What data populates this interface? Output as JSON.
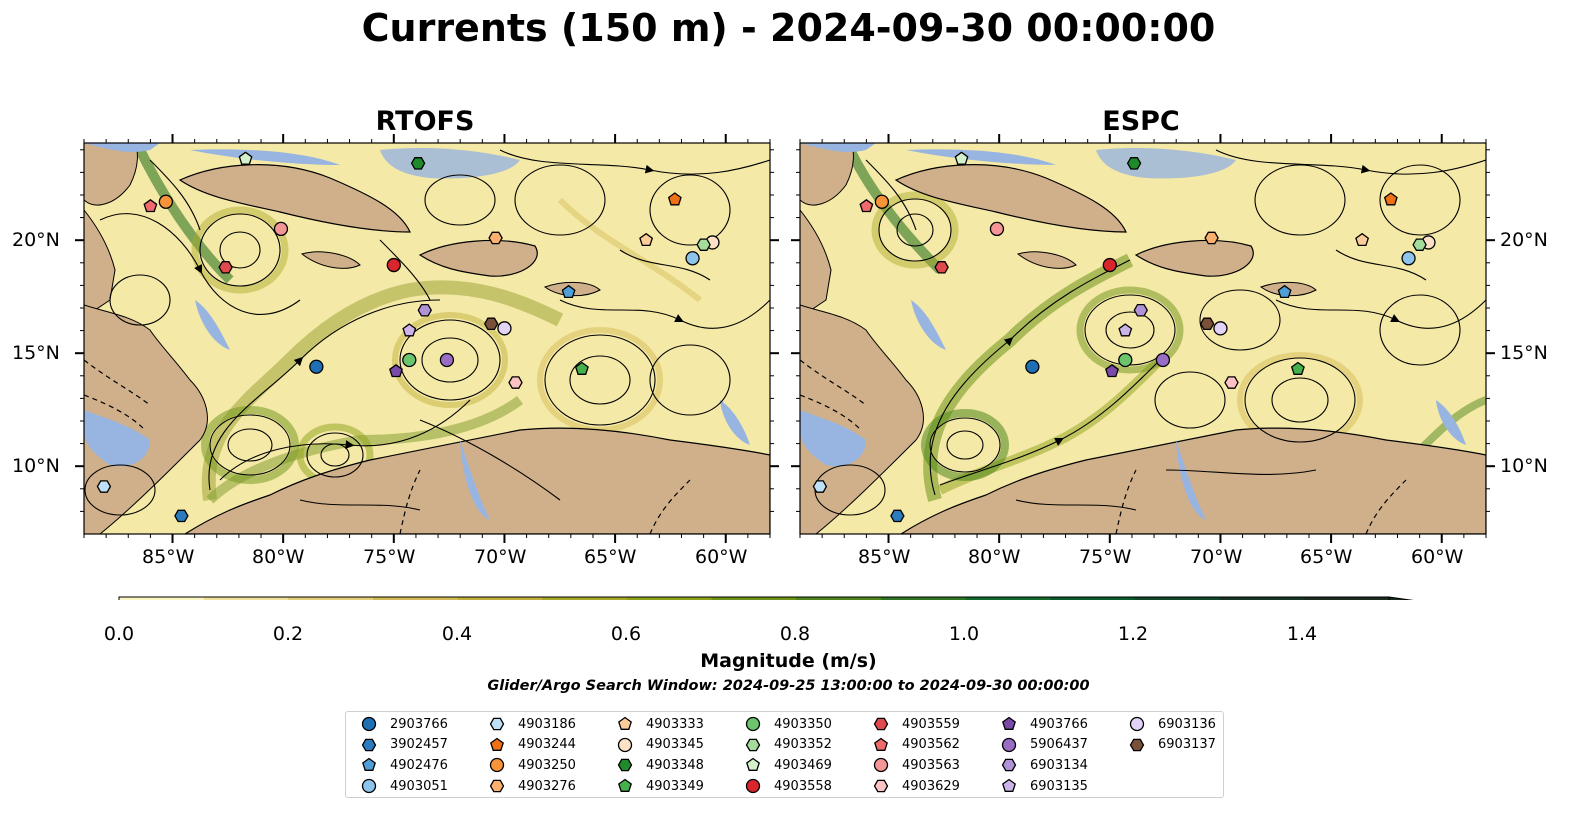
{
  "title": "Currents (150 m) - 2024-09-30 00:00:00",
  "panels": [
    {
      "id": "rtofs",
      "title": "RTOFS"
    },
    {
      "id": "espc",
      "title": "ESPC"
    }
  ],
  "axes": {
    "lon_ticks": [
      "85°W",
      "80°W",
      "75°W",
      "70°W",
      "65°W",
      "60°W"
    ],
    "lat_ticks": [
      "20°N",
      "15°N",
      "10°N"
    ],
    "lon_range": [
      -89,
      -58
    ],
    "lat_range": [
      7,
      24.3
    ]
  },
  "colorbar": {
    "label": "Magnitude (m/s)",
    "ticks": [
      "0.0",
      "0.2",
      "0.4",
      "0.6",
      "0.8",
      "1.0",
      "1.2",
      "1.4"
    ],
    "range": [
      0,
      1.5
    ],
    "extend": "max",
    "colors": [
      "#fcf6c2",
      "#f0e29a",
      "#e2cf78",
      "#d3bb55",
      "#c2b23c",
      "#a8a928",
      "#8ea21a",
      "#6e9418",
      "#4e861c",
      "#2f7624",
      "#126a2c",
      "#0c5a2c",
      "#11462a",
      "#173524",
      "#1a2b1d"
    ]
  },
  "search_window": "Glider/Argo Search Window: 2024-09-25 13:00:00 to 2024-09-30 00:00:00",
  "legend": {
    "entries": [
      {
        "label": "2903766",
        "marker": "circle",
        "color": "#1f6fb4"
      },
      {
        "label": "3902457",
        "marker": "hexagon",
        "color": "#2b7bbf"
      },
      {
        "label": "4902476",
        "marker": "pentagon",
        "color": "#4f9fd6"
      },
      {
        "label": "4903051",
        "marker": "circle",
        "color": "#8ec3eb"
      },
      {
        "label": "4903186",
        "marker": "hexagon",
        "color": "#bfe0f6"
      },
      {
        "label": "4903244",
        "marker": "pentagon",
        "color": "#f07016"
      },
      {
        "label": "4903250",
        "marker": "circle",
        "color": "#f7943a"
      },
      {
        "label": "4903276",
        "marker": "hexagon",
        "color": "#fbb06e"
      },
      {
        "label": "4903333",
        "marker": "pentagon",
        "color": "#fdcd99"
      },
      {
        "label": "4903345",
        "marker": "circle",
        "color": "#fde2c7"
      },
      {
        "label": "4903348",
        "marker": "hexagon",
        "color": "#1e8a2a"
      },
      {
        "label": "4903349",
        "marker": "pentagon",
        "color": "#45b14a"
      },
      {
        "label": "4903350",
        "marker": "circle",
        "color": "#6cc46c"
      },
      {
        "label": "4903352",
        "marker": "hexagon",
        "color": "#a4dd9a"
      },
      {
        "label": "4903469",
        "marker": "pentagon",
        "color": "#d3f2cb"
      },
      {
        "label": "4903558",
        "marker": "circle",
        "color": "#d8262c"
      },
      {
        "label": "4903559",
        "marker": "hexagon",
        "color": "#e14a4d"
      },
      {
        "label": "4903562",
        "marker": "pentagon",
        "color": "#ee6a6c"
      },
      {
        "label": "4903563",
        "marker": "circle",
        "color": "#f49696"
      },
      {
        "label": "4903629",
        "marker": "hexagon",
        "color": "#fbc3c3"
      },
      {
        "label": "4903766",
        "marker": "pentagon",
        "color": "#7b4aa8"
      },
      {
        "label": "5906437",
        "marker": "circle",
        "color": "#9a6dc4"
      },
      {
        "label": "6903134",
        "marker": "hexagon",
        "color": "#b292d6"
      },
      {
        "label": "6903135",
        "marker": "pentagon",
        "color": "#cdb4e8"
      },
      {
        "label": "6903136",
        "marker": "circle",
        "color": "#e3d3f6"
      },
      {
        "label": "6903137",
        "marker": "hexagon",
        "color": "#7a5138"
      }
    ]
  },
  "floats": [
    {
      "id": "2903766",
      "lon": -78.5,
      "lat": 14.4
    },
    {
      "id": "3902457",
      "lon": -84.6,
      "lat": 7.8
    },
    {
      "id": "4902476",
      "lon": -67.1,
      "lat": 17.7
    },
    {
      "id": "4903051",
      "lon": -61.5,
      "lat": 19.2
    },
    {
      "id": "4903186",
      "lon": -88.1,
      "lat": 9.1
    },
    {
      "id": "4903244",
      "lon": -62.3,
      "lat": 21.8
    },
    {
      "id": "4903250",
      "lon": -85.3,
      "lat": 21.7
    },
    {
      "id": "4903276",
      "lon": -70.4,
      "lat": 20.1
    },
    {
      "id": "4903333",
      "lon": -63.6,
      "lat": 20.0
    },
    {
      "id": "4903345",
      "lon": -60.6,
      "lat": 19.9
    },
    {
      "id": "4903348",
      "lon": -73.9,
      "lat": 23.4
    },
    {
      "id": "4903349",
      "lon": -66.5,
      "lat": 14.3
    },
    {
      "id": "4903350",
      "lon": -74.3,
      "lat": 14.7
    },
    {
      "id": "4903352",
      "lon": -61.0,
      "lat": 19.8
    },
    {
      "id": "4903469",
      "lon": -81.7,
      "lat": 23.6
    },
    {
      "id": "4903558",
      "lon": -75.0,
      "lat": 18.9
    },
    {
      "id": "4903559",
      "lon": -82.6,
      "lat": 18.8
    },
    {
      "id": "4903562",
      "lon": -86.0,
      "lat": 21.5
    },
    {
      "id": "4903563",
      "lon": -80.1,
      "lat": 20.5
    },
    {
      "id": "4903629",
      "lon": -69.5,
      "lat": 13.7
    },
    {
      "id": "4903766",
      "lon": -74.9,
      "lat": 14.2
    },
    {
      "id": "5906437",
      "lon": -72.6,
      "lat": 14.7
    },
    {
      "id": "6903134",
      "lon": -73.6,
      "lat": 16.9
    },
    {
      "id": "6903135",
      "lon": -74.3,
      "lat": 16.0
    },
    {
      "id": "6903136",
      "lon": -70.0,
      "lat": 16.1
    },
    {
      "id": "6903137",
      "lon": -70.6,
      "lat": 16.3
    }
  ]
}
